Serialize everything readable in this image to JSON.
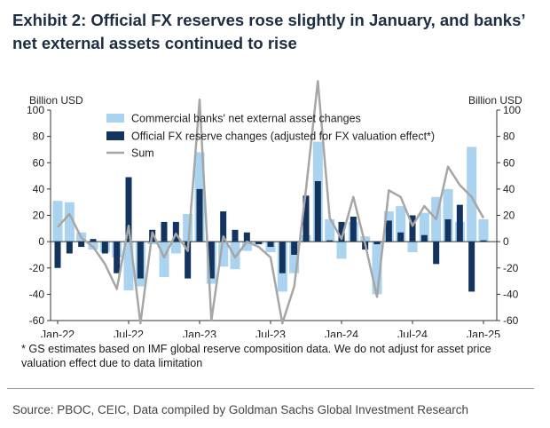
{
  "title_line1": "Exhibit 2: Official FX reserves rose slightly in January, and banks’",
  "title_line2": "net external assets continued to rise",
  "footnote_line1": "* GS estimates based on IMF global reserve composition data. We do not adjust for asset price",
  "footnote_line2": "valuation effect  due to data limitation",
  "source": "Source: PBOC, CEIC, Data compiled by Goldman Sachs Global Investment Research",
  "colors": {
    "commercial": "#a9d3ef",
    "official": "#13345e",
    "sum": "#a6a6a6",
    "axis": "#333333"
  },
  "chart_data": {
    "type": "bar",
    "ylabel_left": "Billion USD",
    "ylabel_right": "Billion USD",
    "ylim": [
      -60,
      100
    ],
    "yticks": [
      -60,
      -40,
      -20,
      0,
      20,
      40,
      60,
      80,
      100
    ],
    "x_tick_labels": [
      "Jan-22",
      "Jul-22",
      "Jan-23",
      "Jul-23",
      "Jan-24",
      "Jul-24",
      "Jan-25"
    ],
    "x_tick_index": [
      0,
      6,
      12,
      18,
      24,
      30,
      36
    ],
    "categories": [
      "Jan-22",
      "Feb-22",
      "Mar-22",
      "Apr-22",
      "May-22",
      "Jun-22",
      "Jul-22",
      "Aug-22",
      "Sep-22",
      "Oct-22",
      "Nov-22",
      "Dec-22",
      "Jan-23",
      "Feb-23",
      "Mar-23",
      "Apr-23",
      "May-23",
      "Jun-23",
      "Jul-23",
      "Aug-23",
      "Sep-23",
      "Oct-23",
      "Nov-23",
      "Dec-23",
      "Jan-24",
      "Feb-24",
      "Mar-24",
      "Apr-24",
      "May-24",
      "Jun-24",
      "Jul-24",
      "Aug-24",
      "Sep-24",
      "Oct-24",
      "Nov-24",
      "Dec-24",
      "Jan-25"
    ],
    "series": [
      {
        "name": "Commercial banks' net external asset changes",
        "kind": "bar",
        "values": [
          31,
          30,
          7,
          -6,
          -8,
          -12,
          -37,
          -34,
          -2,
          -27,
          -9,
          21,
          68,
          -32,
          -19,
          -21,
          -7,
          -2,
          -8,
          -38,
          -24,
          5,
          76,
          17,
          -13,
          15,
          4,
          -40,
          23,
          27,
          -8,
          22,
          34,
          40,
          15,
          72,
          17
        ]
      },
      {
        "name": "Official FX reserve changes (adjusted for FX valuation effect*)",
        "kind": "bar",
        "values": [
          -20,
          -9,
          -4,
          2,
          -9,
          -24,
          49,
          -28,
          9,
          15,
          15,
          -28,
          40,
          -28,
          23,
          9,
          7,
          -2,
          -4,
          -24,
          -10,
          35,
          46,
          1,
          15,
          19,
          -6,
          -2,
          16,
          7,
          20,
          5,
          -17,
          17,
          28,
          -38,
          1
        ]
      },
      {
        "name": "Sum",
        "kind": "line",
        "values": [
          11,
          21,
          3,
          -4,
          -17,
          -36,
          12,
          -62,
          7,
          -12,
          6,
          -7,
          108,
          -60,
          4,
          -12,
          0,
          -4,
          -12,
          -62,
          -34,
          40,
          122,
          18,
          2,
          34,
          -2,
          -42,
          39,
          34,
          12,
          27,
          17,
          57,
          43,
          34,
          18
        ]
      }
    ]
  }
}
